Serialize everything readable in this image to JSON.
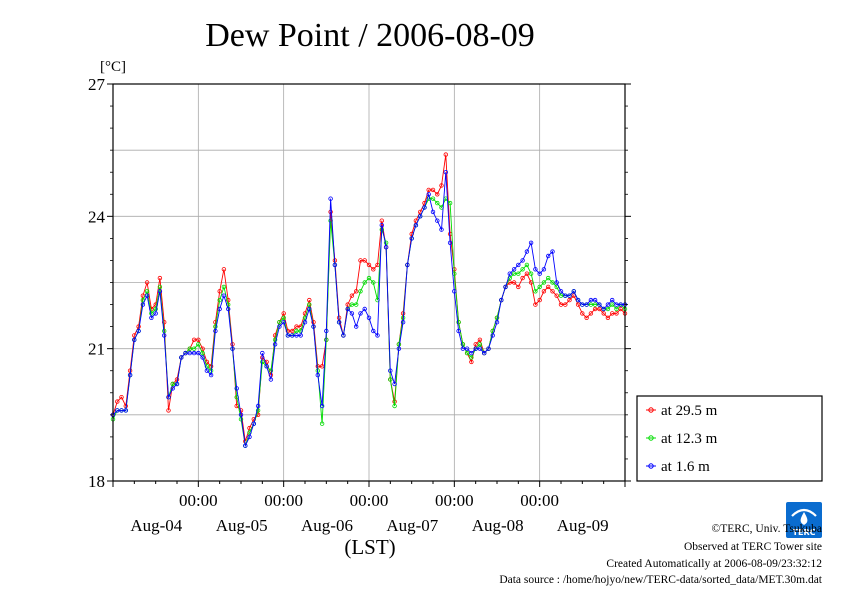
{
  "chart_data": {
    "type": "line",
    "title": "Dew Point / 2006-08-09",
    "ylabel": "[°C]",
    "xlabel": "(LST)",
    "ylim": [
      18,
      27
    ],
    "yticks": [
      18,
      21,
      24,
      27
    ],
    "x_unit": "days since 2006-08-03 00:00 LST",
    "xlim": [
      0.0,
      6.0
    ],
    "xticks": [
      {
        "x": 1.0,
        "time": "00:00",
        "date": "Aug-04"
      },
      {
        "x": 2.0,
        "time": "00:00",
        "date": "Aug-05"
      },
      {
        "x": 3.0,
        "time": "00:00",
        "date": "Aug-06"
      },
      {
        "x": 4.0,
        "time": "00:00",
        "date": "Aug-07"
      },
      {
        "x": 5.0,
        "time": "00:00",
        "date": "Aug-08"
      }
    ],
    "extra_date_labels": [
      {
        "x": 5.8,
        "date": "Aug-09"
      }
    ],
    "grid": true,
    "legend_position": "right-bottom, outside plot",
    "series": [
      {
        "name": "at 29.5 m",
        "color": "#ff0000",
        "x": [
          0,
          0.05,
          0.1,
          0.15,
          0.2,
          0.25,
          0.3,
          0.35,
          0.4,
          0.45,
          0.5,
          0.55,
          0.6,
          0.65,
          0.7,
          0.75,
          0.8,
          0.85,
          0.9,
          0.95,
          1.0,
          1.05,
          1.1,
          1.15,
          1.2,
          1.25,
          1.3,
          1.35,
          1.4,
          1.45,
          1.5,
          1.55,
          1.6,
          1.65,
          1.7,
          1.75,
          1.8,
          1.85,
          1.9,
          1.95,
          2.0,
          2.05,
          2.1,
          2.15,
          2.2,
          2.25,
          2.3,
          2.35,
          2.4,
          2.45,
          2.5,
          2.55,
          2.6,
          2.65,
          2.7,
          2.75,
          2.8,
          2.85,
          2.9,
          2.95,
          3.0,
          3.05,
          3.1,
          3.15,
          3.2,
          3.25,
          3.3,
          3.35,
          3.4,
          3.45,
          3.5,
          3.55,
          3.6,
          3.65,
          3.7,
          3.75,
          3.8,
          3.85,
          3.9,
          3.95,
          4.0,
          4.05,
          4.1,
          4.15,
          4.2,
          4.25,
          4.3,
          4.35,
          4.4,
          4.45,
          4.5,
          4.55,
          4.6,
          4.65,
          4.7,
          4.75,
          4.8,
          4.85,
          4.9,
          4.95,
          5.0,
          5.05,
          5.1,
          5.15,
          5.2,
          5.25,
          5.3,
          5.35,
          5.4,
          5.45,
          5.5,
          5.55,
          5.6,
          5.65,
          5.7,
          5.75,
          5.8,
          5.85,
          5.9,
          5.95,
          6.0
        ],
        "y": [
          19.5,
          19.8,
          19.9,
          19.7,
          20.5,
          21.3,
          21.5,
          22.2,
          22.5,
          21.9,
          22.0,
          22.6,
          21.6,
          19.6,
          20.2,
          20.3,
          20.8,
          20.9,
          21.0,
          21.2,
          21.2,
          21.0,
          20.7,
          20.6,
          21.6,
          22.3,
          22.8,
          22.1,
          21.1,
          19.7,
          19.6,
          18.9,
          19.2,
          19.4,
          19.5,
          20.8,
          20.7,
          20.4,
          21.3,
          21.6,
          21.8,
          21.4,
          21.4,
          21.5,
          21.5,
          21.8,
          22.1,
          21.6,
          20.6,
          20.6,
          21.2,
          24.1,
          23.0,
          21.7,
          21.3,
          22.0,
          22.2,
          22.3,
          23.0,
          23.0,
          22.9,
          22.8,
          22.9,
          23.9,
          23.3,
          20.3,
          19.8,
          21.1,
          21.8,
          22.9,
          23.6,
          23.9,
          24.1,
          24.3,
          24.6,
          24.6,
          24.5,
          24.7,
          25.4,
          23.6,
          22.8,
          21.6,
          21.1,
          20.9,
          20.7,
          21.1,
          21.2,
          20.9,
          21.0,
          21.4,
          21.7,
          22.1,
          22.4,
          22.5,
          22.5,
          22.4,
          22.6,
          22.7,
          22.5,
          22.0,
          22.1,
          22.3,
          22.4,
          22.3,
          22.2,
          22.0,
          22.0,
          22.1,
          22.2,
          22.0,
          21.8,
          21.7,
          21.8,
          21.9,
          21.9,
          21.8,
          21.7,
          21.8,
          21.8,
          21.9,
          21.8
        ]
      },
      {
        "name": "at 12.3 m",
        "color": "#00dd00",
        "x": [
          0,
          0.05,
          0.1,
          0.15,
          0.2,
          0.25,
          0.3,
          0.35,
          0.4,
          0.45,
          0.5,
          0.55,
          0.6,
          0.65,
          0.7,
          0.75,
          0.8,
          0.85,
          0.9,
          0.95,
          1.0,
          1.05,
          1.1,
          1.15,
          1.2,
          1.25,
          1.3,
          1.35,
          1.4,
          1.45,
          1.5,
          1.55,
          1.6,
          1.65,
          1.7,
          1.75,
          1.8,
          1.85,
          1.9,
          1.95,
          2.0,
          2.05,
          2.1,
          2.15,
          2.2,
          2.25,
          2.3,
          2.35,
          2.4,
          2.45,
          2.5,
          2.55,
          2.6,
          2.65,
          2.7,
          2.75,
          2.8,
          2.85,
          2.9,
          2.95,
          3.0,
          3.05,
          3.1,
          3.15,
          3.2,
          3.25,
          3.3,
          3.35,
          3.4,
          3.45,
          3.5,
          3.55,
          3.6,
          3.65,
          3.7,
          3.75,
          3.8,
          3.85,
          3.9,
          3.95,
          4.0,
          4.05,
          4.1,
          4.15,
          4.2,
          4.25,
          4.3,
          4.35,
          4.4,
          4.45,
          4.5,
          4.55,
          4.6,
          4.65,
          4.7,
          4.75,
          4.8,
          4.85,
          4.9,
          4.95,
          5.0,
          5.05,
          5.1,
          5.15,
          5.2,
          5.25,
          5.3,
          5.35,
          5.4,
          5.45,
          5.5,
          5.55,
          5.6,
          5.65,
          5.7,
          5.75,
          5.8,
          5.85,
          5.9,
          5.95,
          6.0
        ],
        "y": [
          19.4,
          19.6,
          19.6,
          19.6,
          20.4,
          21.2,
          21.4,
          22.1,
          22.3,
          21.8,
          21.9,
          22.4,
          21.4,
          19.9,
          20.2,
          20.2,
          20.8,
          20.9,
          21.0,
          21.0,
          21.1,
          20.9,
          20.6,
          20.5,
          21.5,
          22.1,
          22.4,
          22.0,
          21.0,
          19.9,
          19.4,
          18.8,
          19.1,
          19.3,
          19.6,
          20.7,
          20.6,
          20.5,
          21.2,
          21.6,
          21.7,
          21.3,
          21.3,
          21.4,
          21.4,
          21.7,
          22.0,
          21.5,
          20.5,
          19.3,
          21.2,
          23.9,
          22.9,
          21.6,
          21.3,
          21.9,
          22.0,
          22.0,
          22.3,
          22.5,
          22.6,
          22.5,
          22.1,
          23.7,
          23.4,
          20.3,
          19.7,
          21.1,
          21.7,
          22.9,
          23.5,
          23.8,
          24.0,
          24.2,
          24.4,
          24.4,
          24.3,
          24.2,
          24.4,
          24.3,
          22.7,
          21.6,
          21.1,
          20.9,
          20.8,
          21.0,
          21.1,
          20.9,
          21.0,
          21.4,
          21.7,
          22.1,
          22.4,
          22.6,
          22.7,
          22.7,
          22.8,
          22.9,
          22.7,
          22.3,
          22.4,
          22.5,
          22.6,
          22.5,
          22.4,
          22.2,
          22.2,
          22.2,
          22.3,
          22.1,
          22.0,
          22.0,
          22.0,
          22.0,
          22.0,
          21.9,
          21.9,
          22.0,
          21.9,
          22.0,
          21.9
        ]
      },
      {
        "name": "at 1.6 m",
        "color": "#0000ff",
        "x": [
          0,
          0.05,
          0.1,
          0.15,
          0.2,
          0.25,
          0.3,
          0.35,
          0.4,
          0.45,
          0.5,
          0.55,
          0.6,
          0.65,
          0.7,
          0.75,
          0.8,
          0.85,
          0.9,
          0.95,
          1.0,
          1.05,
          1.1,
          1.15,
          1.2,
          1.25,
          1.3,
          1.35,
          1.4,
          1.45,
          1.5,
          1.55,
          1.6,
          1.65,
          1.7,
          1.75,
          1.8,
          1.85,
          1.9,
          1.95,
          2.0,
          2.05,
          2.1,
          2.15,
          2.2,
          2.25,
          2.3,
          2.35,
          2.4,
          2.45,
          2.5,
          2.55,
          2.6,
          2.65,
          2.7,
          2.75,
          2.8,
          2.85,
          2.9,
          2.95,
          3.0,
          3.05,
          3.1,
          3.15,
          3.2,
          3.25,
          3.3,
          3.35,
          3.4,
          3.45,
          3.5,
          3.55,
          3.6,
          3.65,
          3.7,
          3.75,
          3.8,
          3.85,
          3.9,
          3.95,
          4.0,
          4.05,
          4.1,
          4.15,
          4.2,
          4.25,
          4.3,
          4.35,
          4.4,
          4.45,
          4.5,
          4.55,
          4.6,
          4.65,
          4.7,
          4.75,
          4.8,
          4.85,
          4.9,
          4.95,
          5.0,
          5.05,
          5.1,
          5.15,
          5.2,
          5.25,
          5.3,
          5.35,
          5.4,
          5.45,
          5.5,
          5.55,
          5.6,
          5.65,
          5.7,
          5.75,
          5.8,
          5.85,
          5.9,
          5.95,
          6.0
        ],
        "y": [
          19.5,
          19.6,
          19.6,
          19.6,
          20.4,
          21.2,
          21.4,
          22.0,
          22.2,
          21.7,
          21.8,
          22.3,
          21.3,
          19.9,
          20.1,
          20.2,
          20.8,
          20.9,
          20.9,
          20.9,
          20.9,
          20.8,
          20.5,
          20.4,
          21.4,
          21.9,
          22.2,
          21.9,
          21.0,
          20.1,
          19.5,
          18.8,
          19.0,
          19.3,
          19.7,
          20.9,
          20.6,
          20.3,
          21.1,
          21.5,
          21.6,
          21.3,
          21.3,
          21.3,
          21.3,
          21.6,
          21.9,
          21.5,
          20.4,
          19.7,
          21.4,
          24.4,
          22.9,
          21.6,
          21.3,
          21.9,
          21.8,
          21.5,
          21.8,
          21.9,
          21.7,
          21.4,
          21.3,
          23.8,
          23.3,
          20.5,
          20.2,
          21.0,
          21.6,
          22.9,
          23.5,
          23.8,
          24.0,
          24.2,
          24.5,
          24.1,
          23.9,
          23.7,
          25.0,
          23.4,
          22.3,
          21.4,
          21.0,
          21.0,
          20.9,
          21.0,
          21.0,
          20.9,
          21.0,
          21.3,
          21.6,
          22.1,
          22.4,
          22.7,
          22.8,
          22.9,
          23.0,
          23.2,
          23.4,
          22.8,
          22.7,
          22.8,
          23.1,
          23.2,
          22.5,
          22.3,
          22.2,
          22.2,
          22.3,
          22.1,
          22.0,
          22.0,
          22.1,
          22.1,
          22.0,
          21.9,
          22.0,
          22.1,
          22.0,
          22.0,
          22.0
        ]
      }
    ]
  },
  "credits": {
    "line1": "©TERC, Univ. Tsukuba",
    "line2": "Observed at TERC Tower site",
    "line3": "Created Automatically at 2006-08-09/23:32:12",
    "line4": "Data source : /home/hojyo/new/TERC-data/sorted_data/MET.30m.dat"
  },
  "logo": {
    "text": "TERC",
    "color": "#0a6ccf"
  }
}
